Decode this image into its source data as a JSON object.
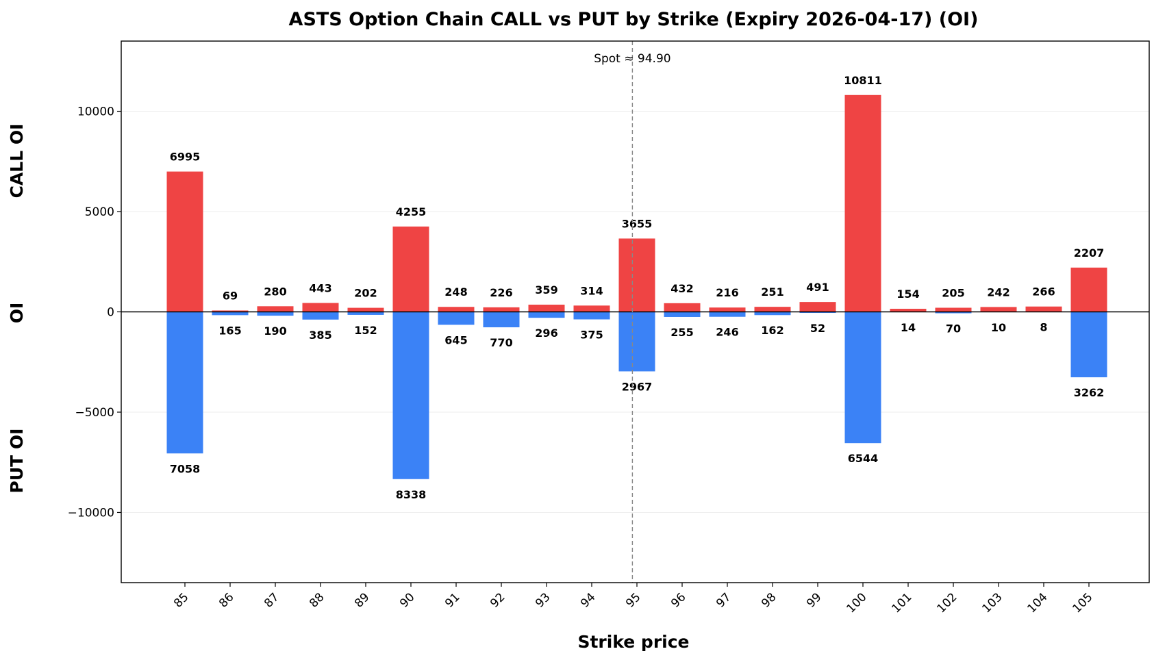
{
  "colors": {
    "call": "#ef4444",
    "put": "#3b82f6",
    "spot_line": "#888888",
    "grid": "#eeeeee"
  },
  "chart_data": {
    "type": "bar",
    "title": "ASTS Option Chain CALL vs PUT by Strike (Expiry 2026-04-17) (OI)",
    "xlabel": "Strike price",
    "ylabel": "OI",
    "ylabel_top": "CALL OI",
    "ylabel_bottom": "PUT OI",
    "categories": [
      "85",
      "86",
      "87",
      "88",
      "89",
      "90",
      "91",
      "92",
      "93",
      "94",
      "95",
      "96",
      "97",
      "98",
      "99",
      "100",
      "101",
      "102",
      "103",
      "104",
      "105"
    ],
    "series": [
      {
        "name": "CALL OI",
        "values": [
          6995,
          69,
          280,
          443,
          202,
          4255,
          248,
          226,
          359,
          314,
          3655,
          432,
          216,
          251,
          491,
          10811,
          154,
          205,
          242,
          266,
          2207
        ]
      },
      {
        "name": "PUT OI",
        "values": [
          7058,
          165,
          190,
          385,
          152,
          8338,
          645,
          770,
          296,
          375,
          2967,
          255,
          246,
          162,
          52,
          6544,
          14,
          70,
          10,
          8,
          3262
        ]
      }
    ],
    "ylim": [
      -13500,
      13500
    ],
    "yticks": [
      10000,
      5000,
      0,
      -5000,
      -10000
    ],
    "ytick_labels": [
      "10000",
      "5000",
      "0",
      "−5000",
      "−10000"
    ],
    "spot": {
      "value": 94.9,
      "label": "Spot ≈ 94.90"
    },
    "grid": true
  }
}
